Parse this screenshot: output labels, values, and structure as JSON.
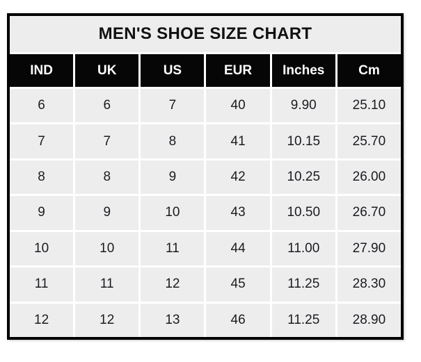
{
  "title": "MEN'S SHOE SIZE CHART",
  "table": {
    "columns": [
      "IND",
      "UK",
      "US",
      "EUR",
      "Inches",
      "Cm"
    ],
    "rows": [
      [
        "6",
        "6",
        "7",
        "40",
        "9.90",
        "25.10"
      ],
      [
        "7",
        "7",
        "8",
        "41",
        "10.15",
        "25.70"
      ],
      [
        "8",
        "8",
        "9",
        "42",
        "10.25",
        "26.00"
      ],
      [
        "9",
        "9",
        "10",
        "43",
        "10.50",
        "26.70"
      ],
      [
        "10",
        "10",
        "11",
        "44",
        "11.00",
        "27.90"
      ],
      [
        "11",
        "11",
        "12",
        "45",
        "11.25",
        "28.30"
      ],
      [
        "12",
        "12",
        "13",
        "46",
        "11.25",
        "28.90"
      ]
    ]
  },
  "chart_data": {
    "type": "table",
    "title": "MEN'S SHOE SIZE CHART",
    "columns": [
      "IND",
      "UK",
      "US",
      "EUR",
      "Inches",
      "Cm"
    ],
    "rows": [
      [
        6,
        6,
        7,
        40,
        9.9,
        25.1
      ],
      [
        7,
        7,
        8,
        41,
        10.15,
        25.7
      ],
      [
        8,
        8,
        9,
        42,
        10.25,
        26.0
      ],
      [
        9,
        9,
        10,
        43,
        10.5,
        26.7
      ],
      [
        10,
        10,
        11,
        44,
        11.0,
        27.9
      ],
      [
        11,
        11,
        12,
        45,
        11.25,
        28.3
      ],
      [
        12,
        12,
        13,
        46,
        11.25,
        28.9
      ]
    ],
    "legend": "none",
    "grid": "on"
  },
  "colors": {
    "page_bg": "#ffffff",
    "border": "#000000",
    "grid_line": "#ffffff",
    "title_bg": "#eeedee",
    "title_text": "#111111",
    "header_bg": "#060606",
    "header_text": "#ffffff",
    "cell_bg": "#eeedee",
    "cell_text": "#1b1b20"
  }
}
